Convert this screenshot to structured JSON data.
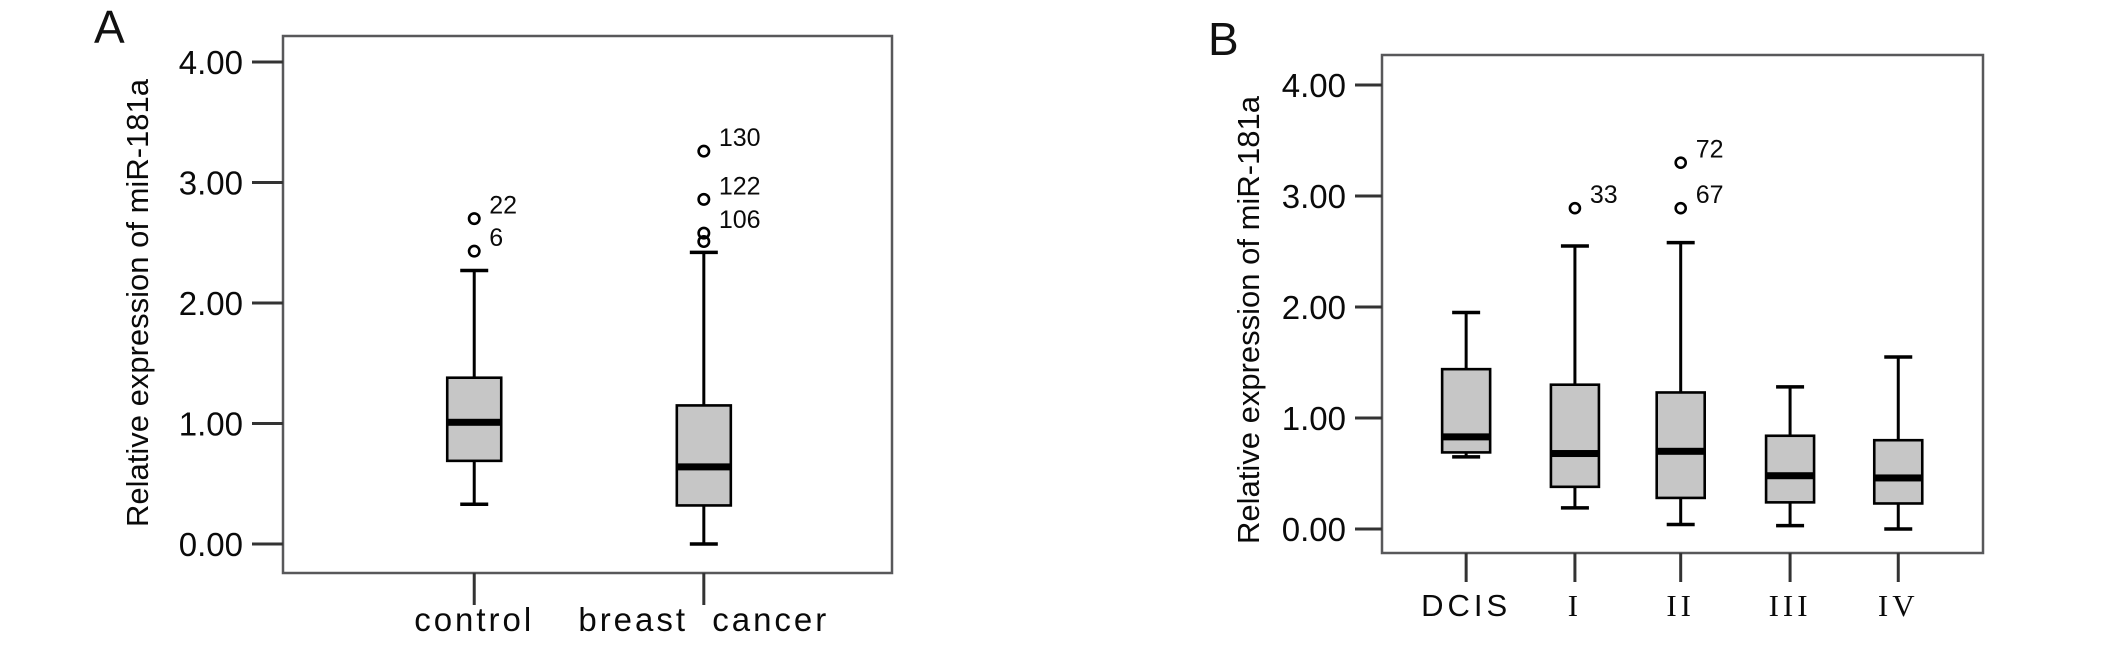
{
  "figure": {
    "background": "#ffffff",
    "description": "Two-panel box plot figure of relative miR-181a expression"
  },
  "colors": {
    "box_fill": "#c6c6c6",
    "box_stroke": "#000000",
    "median": "#000000",
    "whisker": "#000000",
    "frame": "#58585a",
    "tick": "#333333",
    "text": "#0a0a0a"
  },
  "chart_data": [
    {
      "type": "boxplot",
      "panel_label": "A",
      "ylabel": "Relative expression of miR-181a",
      "ytick_values": [
        0,
        1,
        2,
        3,
        4
      ],
      "ytick_labels": [
        "0.00",
        "1.00",
        "2.00",
        "3.00",
        "4.00"
      ],
      "ylim": [
        -0.25,
        4.2
      ],
      "grid": false,
      "categories": [
        "control",
        "breast cancer"
      ],
      "series": [
        {
          "category": "control",
          "whisker_low": 0.33,
          "q1": 0.69,
          "median": 1.01,
          "q3": 1.38,
          "whisker_high": 2.27,
          "outliers": [
            {
              "value": 2.7,
              "label": "22"
            },
            {
              "value": 2.43,
              "label": "6"
            }
          ]
        },
        {
          "category": "breast cancer",
          "whisker_low": 0.0,
          "q1": 0.32,
          "median": 0.64,
          "q3": 1.15,
          "whisker_high": 2.42,
          "outliers": [
            {
              "value": 3.26,
              "label": "130"
            },
            {
              "value": 2.86,
              "label": "122"
            },
            {
              "value": 2.58,
              "label": "106"
            },
            {
              "value": 2.51,
              "label": ""
            }
          ]
        }
      ]
    },
    {
      "type": "boxplot",
      "panel_label": "B",
      "ylabel": "Relative expression of miR-181a",
      "ytick_values": [
        0,
        1,
        2,
        3,
        4
      ],
      "ytick_labels": [
        "0.00",
        "1.00",
        "2.00",
        "3.00",
        "4.00"
      ],
      "ylim": [
        -0.22,
        4.25
      ],
      "grid": false,
      "categories": [
        "DCIS",
        "I",
        "II",
        "III",
        "IV"
      ],
      "series": [
        {
          "category": "DCIS",
          "whisker_low": 0.65,
          "q1": 0.69,
          "median": 0.83,
          "q3": 1.44,
          "whisker_high": 1.95,
          "outliers": []
        },
        {
          "category": "I",
          "whisker_low": 0.19,
          "q1": 0.38,
          "median": 0.68,
          "q3": 1.3,
          "whisker_high": 2.55,
          "outliers": [
            {
              "value": 2.89,
              "label": "33"
            }
          ]
        },
        {
          "category": "II",
          "whisker_low": 0.04,
          "q1": 0.28,
          "median": 0.7,
          "q3": 1.23,
          "whisker_high": 2.58,
          "outliers": [
            {
              "value": 3.3,
              "label": "72"
            },
            {
              "value": 2.89,
              "label": "67"
            }
          ]
        },
        {
          "category": "III",
          "whisker_low": 0.03,
          "q1": 0.24,
          "median": 0.48,
          "q3": 0.84,
          "whisker_high": 1.28,
          "outliers": []
        },
        {
          "category": "IV",
          "whisker_low": 0.0,
          "q1": 0.23,
          "median": 0.46,
          "q3": 0.8,
          "whisker_high": 1.55,
          "outliers": []
        }
      ]
    }
  ]
}
